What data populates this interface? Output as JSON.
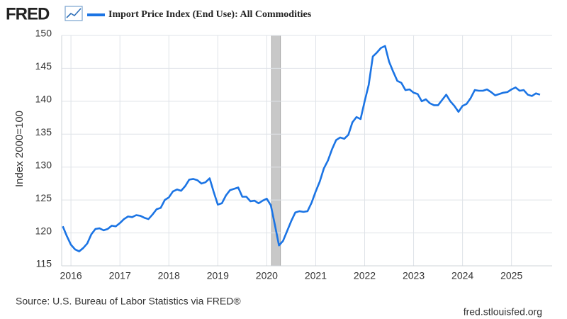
{
  "logo": "FRED",
  "chart_data": {
    "type": "line",
    "y_label": "Index 2000=100",
    "source": "Source: U.S. Bureau of Labor Statistics via FRED®",
    "site": "fred.stlouisfed.org",
    "x": [
      2015.833,
      2015.917,
      2016,
      2016.083,
      2016.167,
      2016.25,
      2016.333,
      2016.417,
      2016.5,
      2016.583,
      2016.667,
      2016.75,
      2016.833,
      2016.917,
      2017,
      2017.083,
      2017.167,
      2017.25,
      2017.333,
      2017.417,
      2017.5,
      2017.583,
      2017.667,
      2017.75,
      2017.833,
      2017.917,
      2018,
      2018.083,
      2018.167,
      2018.25,
      2018.333,
      2018.417,
      2018.5,
      2018.583,
      2018.667,
      2018.75,
      2018.833,
      2018.917,
      2019,
      2019.083,
      2019.167,
      2019.25,
      2019.333,
      2019.417,
      2019.5,
      2019.583,
      2019.667,
      2019.75,
      2019.833,
      2019.917,
      2020,
      2020.083,
      2020.167,
      2020.25,
      2020.333,
      2020.417,
      2020.5,
      2020.583,
      2020.667,
      2020.75,
      2020.833,
      2020.917,
      2021,
      2021.083,
      2021.167,
      2021.25,
      2021.333,
      2021.417,
      2021.5,
      2021.583,
      2021.667,
      2021.75,
      2021.833,
      2021.917,
      2022,
      2022.083,
      2022.167,
      2022.25,
      2022.333,
      2022.417,
      2022.5,
      2022.583,
      2022.667,
      2022.75,
      2022.833,
      2022.917,
      2023,
      2023.083,
      2023.167,
      2023.25,
      2023.333,
      2023.417,
      2023.5,
      2023.583,
      2023.667,
      2023.75,
      2023.833,
      2023.917,
      2024,
      2024.083,
      2024.167,
      2024.25,
      2024.333,
      2024.417,
      2024.5,
      2024.583,
      2024.667,
      2024.75,
      2024.833,
      2024.917,
      2025,
      2025.083,
      2025.167,
      2025.25,
      2025.333,
      2025.417,
      2025.5,
      2025.583
    ],
    "series": [
      {
        "name": "Import Price Index (End Use): All Commodities",
        "color": "#1b74e4",
        "values": [
          121.0,
          119.5,
          118.2,
          117.5,
          117.2,
          117.7,
          118.4,
          119.8,
          120.6,
          120.7,
          120.4,
          120.6,
          121.1,
          121.0,
          121.5,
          122.1,
          122.5,
          122.4,
          122.7,
          122.6,
          122.3,
          122.1,
          122.8,
          123.6,
          123.8,
          125.0,
          125.4,
          126.3,
          126.6,
          126.4,
          127.1,
          128.1,
          128.2,
          128.0,
          127.5,
          127.7,
          128.3,
          126.2,
          124.3,
          124.5,
          125.7,
          126.5,
          126.7,
          126.9,
          125.5,
          125.5,
          124.8,
          124.9,
          124.5,
          124.9,
          125.2,
          124.2,
          121.2,
          118.1,
          118.8,
          120.3,
          121.8,
          123.1,
          123.3,
          123.2,
          123.3,
          124.6,
          126.3,
          127.8,
          129.8,
          131.0,
          132.7,
          134.1,
          134.5,
          134.3,
          134.9,
          136.8,
          137.6,
          137.3,
          140.0,
          142.5,
          146.8,
          147.4,
          148.1,
          148.4,
          146.0,
          144.5,
          143.1,
          142.8,
          141.7,
          141.8,
          141.3,
          141.1,
          140.0,
          140.3,
          139.7,
          139.4,
          139.4,
          140.2,
          141.0,
          140.0,
          139.3,
          138.4,
          139.3,
          139.6,
          140.5,
          141.7,
          141.6,
          141.6,
          141.8,
          141.4,
          140.9,
          141.1,
          141.3,
          141.4,
          141.8,
          142.1,
          141.6,
          141.7,
          141.0,
          140.8,
          141.2,
          141.0
        ]
      }
    ],
    "shading": [
      [
        2020.1,
        2020.28
      ]
    ],
    "shading_color": "#c8c8c8",
    "xlim": [
      2015.81,
      2025.83
    ],
    "xticks": [
      2016,
      2017,
      2018,
      2019,
      2020,
      2021,
      2022,
      2023,
      2024,
      2025
    ],
    "ylim": [
      115,
      150
    ],
    "yticks": [
      115,
      120,
      125,
      130,
      135,
      140,
      145,
      150
    ],
    "grid": true
  }
}
